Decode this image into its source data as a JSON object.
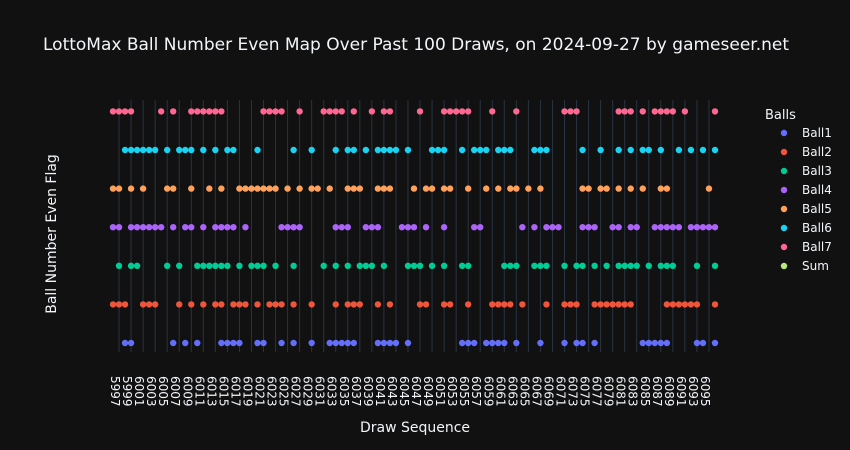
{
  "chart_data": {
    "type": "scatter",
    "title": "LottoMax Ball Number Even Map Over Past 100 Draws, on 2024-09-27 by gameseer.net",
    "xlabel": "Draw Sequence",
    "ylabel": "Ball Number Even Flag",
    "xlim": [
      5996,
      6096
    ],
    "x_tick_labels": [
      "5997",
      "5999",
      "6001",
      "6003",
      "6005",
      "6007",
      "6009",
      "6011",
      "6013",
      "6015",
      "6017",
      "6019",
      "6021",
      "6023",
      "6025",
      "6027",
      "6029",
      "6031",
      "6033",
      "6035",
      "6037",
      "6039",
      "6041",
      "6043",
      "6045",
      "6047",
      "6049",
      "6051",
      "6053",
      "6055",
      "6057",
      "6059",
      "6061",
      "6063",
      "6065",
      "6067",
      "6069",
      "6071",
      "6073",
      "6075",
      "6077",
      "6079",
      "6081",
      "6083",
      "6085",
      "6087",
      "6089",
      "6091",
      "6093",
      "6095"
    ],
    "grid": true,
    "legend": {
      "title": "Balls",
      "placement": "right"
    },
    "series": [
      {
        "name": "Ball1",
        "color": "#636efa",
        "row": 1,
        "x": [
          5998,
          5999,
          6006,
          6008,
          6010,
          6014,
          6015,
          6016,
          6017,
          6020,
          6021,
          6024,
          6026,
          6029,
          6032,
          6033,
          6034,
          6035,
          6036,
          6040,
          6041,
          6042,
          6043,
          6045,
          6054,
          6055,
          6056,
          6058,
          6059,
          6060,
          6061,
          6063,
          6067,
          6071,
          6073,
          6074,
          6076,
          6084,
          6085,
          6086,
          6087,
          6088,
          6093,
          6094,
          6096
        ]
      },
      {
        "name": "Ball2",
        "color": "#ef553b",
        "row": 2,
        "x": [
          5996,
          5997,
          5998,
          6001,
          6002,
          6003,
          6007,
          6009,
          6011,
          6013,
          6014,
          6016,
          6017,
          6018,
          6020,
          6022,
          6023,
          6024,
          6026,
          6029,
          6033,
          6035,
          6036,
          6037,
          6040,
          6042,
          6047,
          6048,
          6051,
          6052,
          6055,
          6059,
          6060,
          6061,
          6062,
          6064,
          6068,
          6071,
          6072,
          6073,
          6076,
          6077,
          6078,
          6079,
          6080,
          6081,
          6082,
          6088,
          6089,
          6090,
          6091,
          6092,
          6093,
          6096
        ]
      },
      {
        "name": "Ball3",
        "color": "#00cc96",
        "row": 3,
        "x": [
          5997,
          5999,
          6000,
          6005,
          6007,
          6010,
          6011,
          6012,
          6013,
          6014,
          6015,
          6017,
          6019,
          6020,
          6021,
          6023,
          6026,
          6031,
          6033,
          6035,
          6037,
          6038,
          6039,
          6041,
          6045,
          6046,
          6047,
          6049,
          6051,
          6054,
          6055,
          6061,
          6062,
          6063,
          6066,
          6067,
          6068,
          6071,
          6073,
          6074,
          6076,
          6078,
          6080,
          6081,
          6082,
          6083,
          6085,
          6087,
          6088,
          6089,
          6093,
          6096
        ]
      },
      {
        "name": "Ball4",
        "color": "#ab63fa",
        "row": 4,
        "x": [
          5996,
          5997,
          5999,
          6000,
          6001,
          6002,
          6003,
          6004,
          6006,
          6008,
          6009,
          6011,
          6013,
          6014,
          6015,
          6016,
          6018,
          6024,
          6025,
          6026,
          6027,
          6033,
          6034,
          6035,
          6038,
          6039,
          6040,
          6044,
          6045,
          6046,
          6048,
          6051,
          6056,
          6057,
          6064,
          6066,
          6068,
          6069,
          6070,
          6074,
          6075,
          6076,
          6079,
          6080,
          6082,
          6083,
          6086,
          6087,
          6088,
          6089,
          6090,
          6092,
          6093,
          6094,
          6095,
          6096
        ]
      },
      {
        "name": "Ball5",
        "color": "#ffa15a",
        "row": 5,
        "x": [
          5996,
          5997,
          5999,
          6001,
          6005,
          6006,
          6009,
          6012,
          6014,
          6017,
          6018,
          6019,
          6020,
          6021,
          6022,
          6023,
          6025,
          6027,
          6029,
          6030,
          6032,
          6035,
          6036,
          6037,
          6040,
          6041,
          6042,
          6046,
          6048,
          6049,
          6051,
          6052,
          6055,
          6058,
          6060,
          6062,
          6063,
          6065,
          6067,
          6074,
          6075,
          6077,
          6078,
          6080,
          6082,
          6084,
          6087,
          6088,
          6095
        ]
      },
      {
        "name": "Ball6",
        "color": "#19d3f3",
        "row": 6,
        "x": [
          5998,
          5999,
          6000,
          6001,
          6002,
          6003,
          6005,
          6007,
          6008,
          6009,
          6011,
          6013,
          6015,
          6016,
          6020,
          6026,
          6029,
          6033,
          6035,
          6036,
          6038,
          6040,
          6041,
          6042,
          6043,
          6045,
          6049,
          6050,
          6051,
          6054,
          6056,
          6057,
          6058,
          6060,
          6061,
          6062,
          6066,
          6067,
          6068,
          6074,
          6077,
          6080,
          6082,
          6084,
          6085,
          6087,
          6090,
          6092,
          6094,
          6096
        ]
      },
      {
        "name": "Ball7",
        "color": "#ff6692",
        "row": 7,
        "x": [
          5996,
          5997,
          5998,
          5999,
          6004,
          6006,
          6009,
          6010,
          6011,
          6012,
          6013,
          6014,
          6021,
          6022,
          6023,
          6024,
          6027,
          6031,
          6032,
          6033,
          6034,
          6036,
          6039,
          6041,
          6042,
          6047,
          6051,
          6052,
          6053,
          6054,
          6055,
          6059,
          6063,
          6071,
          6072,
          6073,
          6080,
          6081,
          6082,
          6084,
          6086,
          6087,
          6088,
          6089,
          6091,
          6096
        ]
      },
      {
        "name": "Sum",
        "color": "#b6e880",
        "row": 8,
        "x": []
      }
    ]
  }
}
